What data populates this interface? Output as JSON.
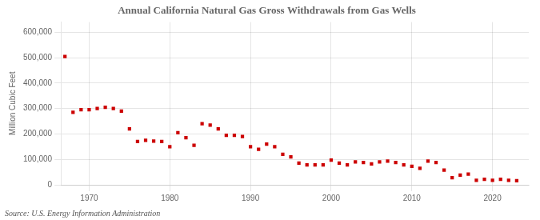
{
  "chart_data": {
    "type": "scatter",
    "title": "Annual California Natural Gas Gross Withdrawals from Gas Wells",
    "y_label": "Million Cubic Feet",
    "annotations": [
      "Source: U.S. Energy Information Administration"
    ],
    "color": "#cc0000",
    "marker": "square",
    "grid": true,
    "x": [
      1967,
      1968,
      1969,
      1970,
      1971,
      1972,
      1973,
      1974,
      1975,
      1976,
      1977,
      1978,
      1979,
      1980,
      1981,
      1982,
      1983,
      1984,
      1985,
      1986,
      1987,
      1988,
      1989,
      1990,
      1991,
      1992,
      1993,
      1994,
      1995,
      1996,
      1997,
      1998,
      1999,
      2000,
      2001,
      2002,
      2003,
      2004,
      2005,
      2006,
      2007,
      2008,
      2009,
      2010,
      2011,
      2012,
      2013,
      2014,
      2015,
      2016,
      2017,
      2018,
      2019,
      2020,
      2021,
      2022,
      2023
    ],
    "values": [
      505000,
      285000,
      295000,
      295000,
      300000,
      305000,
      300000,
      290000,
      220000,
      170000,
      175000,
      172000,
      170000,
      150000,
      205000,
      185000,
      155000,
      240000,
      235000,
      220000,
      195000,
      195000,
      190000,
      150000,
      140000,
      160000,
      150000,
      120000,
      110000,
      85000,
      78000,
      78000,
      78000,
      97000,
      85000,
      78000,
      90000,
      88000,
      82000,
      90000,
      93000,
      88000,
      78000,
      73000,
      65000,
      93000,
      88000,
      58000,
      28000,
      38000,
      42000,
      18000,
      22000,
      18000,
      22000,
      18000,
      16000
    ],
    "xlim": [
      1966.5,
      2024.5
    ],
    "xticks": [
      1970,
      1980,
      1990,
      2000,
      2010,
      2020
    ],
    "ylim": [
      0,
      640000
    ],
    "yticks": [
      0,
      {
        "value": 100000,
        "label": "100,000"
      },
      {
        "value": 200000,
        "label": "200,000"
      },
      {
        "value": 300000,
        "label": "300,000"
      },
      {
        "value": 400000,
        "label": "400,000"
      },
      {
        "value": 500000,
        "label": "500,000"
      },
      {
        "value": 600000,
        "label": "600,000"
      }
    ]
  }
}
